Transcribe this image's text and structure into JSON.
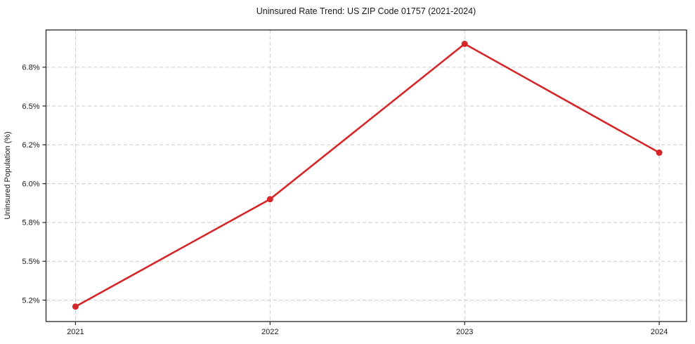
{
  "chart_data": {
    "type": "line",
    "title": "Uninsured Rate Trend: US ZIP Code 01757 (2021-2024)",
    "xlabel": "",
    "ylabel": "Uninsured Population (%)",
    "x": [
      "2021",
      "2022",
      "2023",
      "2024"
    ],
    "values": [
      5.15,
      5.92,
      6.98,
      6.16
    ],
    "y_tick_labels": [
      "5.2%",
      "5.5%",
      "5.8%",
      "6.0%",
      "6.2%",
      "6.5%",
      "6.8%"
    ],
    "y_tick_values": [
      5.2,
      5.5,
      5.8,
      6.0,
      6.2,
      6.5,
      6.8
    ],
    "ylim": [
      5.03,
      7.09
    ],
    "grid": "dashed",
    "legend": "none",
    "marker": "circle",
    "colors": {
      "line": "#d62728",
      "grid": "#cccccc",
      "axis": "#262626",
      "text": "#1a1a1a",
      "background": "#ffffff"
    }
  }
}
